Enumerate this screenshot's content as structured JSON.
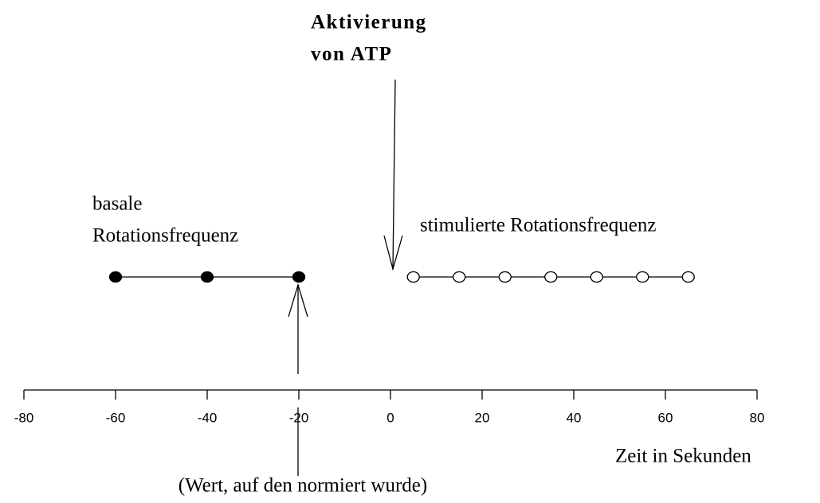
{
  "chart_data": {
    "type": "timeline",
    "x_label": "Zeit in Sekunden",
    "xlim": [
      -80,
      80
    ],
    "xticks": [
      -80,
      -60,
      -40,
      -20,
      0,
      20,
      40,
      60,
      80
    ],
    "annotations": {
      "activation": [
        "Aktivierung",
        "von ATP"
      ],
      "basal": [
        "basale",
        "Rotationsfrequenz"
      ],
      "stimulated": "stimulierte Rotationsfrequenz",
      "normalized": "(Wert, auf den normiert wurde)"
    },
    "series": [
      {
        "name": "basale Rotationsfrequenz",
        "color": "#000000",
        "marker": "filled",
        "x": [
          -60,
          -40,
          -20
        ]
      },
      {
        "name": "stimulierte Rotationsfrequenz",
        "color": "#000000",
        "marker": "open",
        "x": [
          5,
          15,
          25,
          35,
          45,
          55,
          65
        ]
      }
    ]
  }
}
